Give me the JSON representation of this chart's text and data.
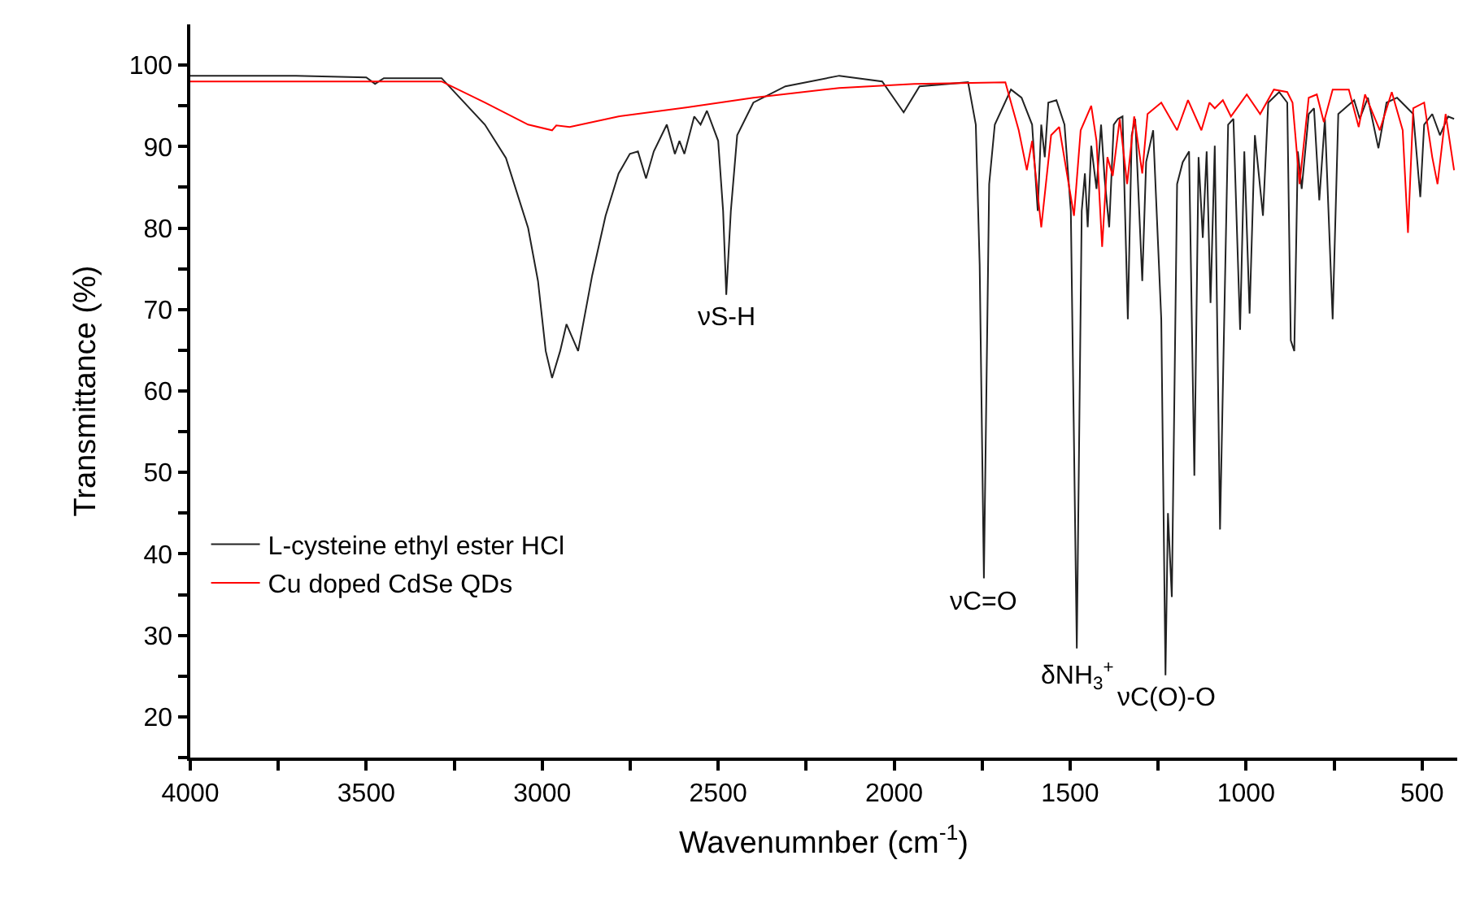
{
  "chart_data": {
    "type": "line",
    "xlabel": "Wavenumnber (cm$^{-1}$)",
    "ylabel": "Transmittance (%)",
    "xlim": [
      4000,
      400
    ],
    "ylim": [
      15,
      105
    ],
    "xticks": [
      4000,
      {
        "value": 3750,
        "label": null
      },
      3500,
      {
        "value": 3250,
        "label": null
      },
      3000,
      {
        "value": 2750,
        "label": null
      },
      2500,
      {
        "value": 2250,
        "label": null
      },
      2000,
      {
        "value": 1750,
        "label": null
      },
      1500,
      {
        "value": 1250,
        "label": null
      },
      1000,
      {
        "value": 750,
        "label": null
      },
      500
    ],
    "yticks": [
      {
        "value": 15,
        "label": null
      },
      20,
      {
        "value": 25,
        "label": null
      },
      30,
      {
        "value": 35,
        "label": null
      },
      40,
      {
        "value": 45,
        "label": null
      },
      50,
      {
        "value": 55,
        "label": null
      },
      60,
      {
        "value": 65,
        "label": null
      },
      70,
      {
        "value": 75,
        "label": null
      },
      80,
      {
        "value": 85,
        "label": null
      },
      90,
      {
        "value": 95,
        "label": null
      },
      100
    ],
    "legend": "bottom left",
    "marker": "none",
    "line_style": "solid",
    "annotations": [
      {
        "text": "νS-H",
        "x": 2477,
        "y": 71.8
      },
      {
        "text": "νC=O",
        "x": 1745,
        "y": 37
      },
      {
        "text": "δNH$_{3}$$^{+}$",
        "x": 1481,
        "y": 28.4
      },
      {
        "text": "νC(O)-O",
        "x": 1229,
        "y": 25.1
      }
    ],
    "series": [
      {
        "name": "L-cysteine ethyl ester HCl",
        "color": "#222222",
        "x": [
          4000,
          3700,
          3500,
          3475,
          3450,
          3286,
          3163,
          3103,
          3040,
          3012,
          2990,
          2972,
          2949,
          2931,
          2898,
          2858,
          2820,
          2783,
          2751,
          2728,
          2705,
          2683,
          2646,
          2623,
          2610,
          2596,
          2568,
          2550,
          2532,
          2500,
          2486,
          2477,
          2464,
          2446,
          2400,
          2309,
          2156,
          2034,
          1973,
          1928,
          1790,
          1768,
          1757,
          1745,
          1730,
          1714,
          1668,
          1638,
          1608,
          1592,
          1582,
          1572,
          1562,
          1539,
          1516,
          1498,
          1481,
          1467,
          1458,
          1450,
          1440,
          1425,
          1412,
          1402,
          1389,
          1376,
          1364,
          1351,
          1336,
          1325,
          1315,
          1295,
          1284,
          1264,
          1241,
          1229,
          1222,
          1211,
          1196,
          1180,
          1162,
          1147,
          1135,
          1123,
          1112,
          1101,
          1089,
          1074,
          1051,
          1036,
          1017,
          1005,
          990,
          975,
          952,
          937,
          906,
          883,
          873,
          863,
          853,
          842,
          822,
          807,
          792,
          776,
          754,
          738,
          693,
          677,
          654,
          624,
          601,
          571,
          525,
          505,
          494,
          471,
          449,
          426,
          409
        ],
        "values": [
          98.7,
          98.7,
          98.5,
          97.7,
          98.4,
          98.4,
          92.7,
          88.6,
          80,
          73.5,
          64.9,
          61.6,
          64.9,
          68.2,
          64.9,
          74.2,
          81.5,
          86.7,
          89.1,
          89.4,
          86.1,
          89.4,
          92.7,
          89.1,
          90.7,
          89.1,
          93.7,
          92.7,
          94.4,
          90.7,
          82.1,
          71.8,
          82.1,
          91.4,
          95.4,
          97.4,
          98.7,
          98,
          94.2,
          97.4,
          97.9,
          92.7,
          75.5,
          37,
          85.4,
          92.7,
          97,
          96,
          92.7,
          82.1,
          92.7,
          88.7,
          95.4,
          95.7,
          92.7,
          82.1,
          28.4,
          82.1,
          86.7,
          80.1,
          90.1,
          84.8,
          92.7,
          86.1,
          80.1,
          92.7,
          93.4,
          93.7,
          68.8,
          91.4,
          93.4,
          73.5,
          88.1,
          92,
          68.8,
          25.1,
          45,
          34.7,
          85.4,
          88.1,
          89.4,
          49.6,
          88.7,
          78.8,
          89.4,
          70.8,
          90.1,
          43,
          92.7,
          93.4,
          67.5,
          89.4,
          69.5,
          91.4,
          81.5,
          95.4,
          96.7,
          95.4,
          66.2,
          64.9,
          89.4,
          84.8,
          94,
          94.7,
          83.4,
          93.4,
          68.8,
          94,
          95.7,
          93.4,
          96,
          89.8,
          95.4,
          96,
          94,
          83.8,
          92.7,
          94,
          91.4,
          93.7,
          93.4
        ]
      },
      {
        "name": "Cu doped CdSe QDs",
        "color": "#ff0000",
        "x": [
          4000,
          3500,
          3286,
          3163,
          3040,
          2972,
          2960,
          2922,
          2783,
          2591,
          2400,
          2156,
          1943,
          1684,
          1646,
          1623,
          1608,
          1582,
          1554,
          1531,
          1489,
          1470,
          1440,
          1425,
          1409,
          1394,
          1379,
          1359,
          1338,
          1318,
          1295,
          1280,
          1241,
          1196,
          1165,
          1127,
          1104,
          1089,
          1066,
          1043,
          998,
          960,
          921,
          883,
          868,
          848,
          822,
          799,
          779,
          754,
          708,
          680,
          662,
          620,
          586,
          555,
          540,
          525,
          494,
          471,
          456,
          433,
          409
        ],
        "values": [
          98,
          98,
          98,
          95.4,
          92.7,
          92,
          92.6,
          92.4,
          93.7,
          94.8,
          96,
          97.2,
          97.7,
          97.9,
          92,
          87.1,
          90.7,
          80.1,
          91.4,
          92.4,
          81.5,
          92,
          95,
          90.7,
          77.7,
          88.7,
          86.4,
          93.4,
          85.4,
          93.7,
          86.7,
          94,
          95.4,
          92,
          95.7,
          92,
          95.4,
          94.7,
          95.7,
          93.7,
          96.4,
          94,
          97,
          96.7,
          95.4,
          85.4,
          96,
          96.4,
          93,
          97,
          97,
          92.4,
          96.4,
          92,
          96.7,
          92,
          79.4,
          94.7,
          95.4,
          88.7,
          85.4,
          94,
          87.1
        ]
      }
    ]
  }
}
